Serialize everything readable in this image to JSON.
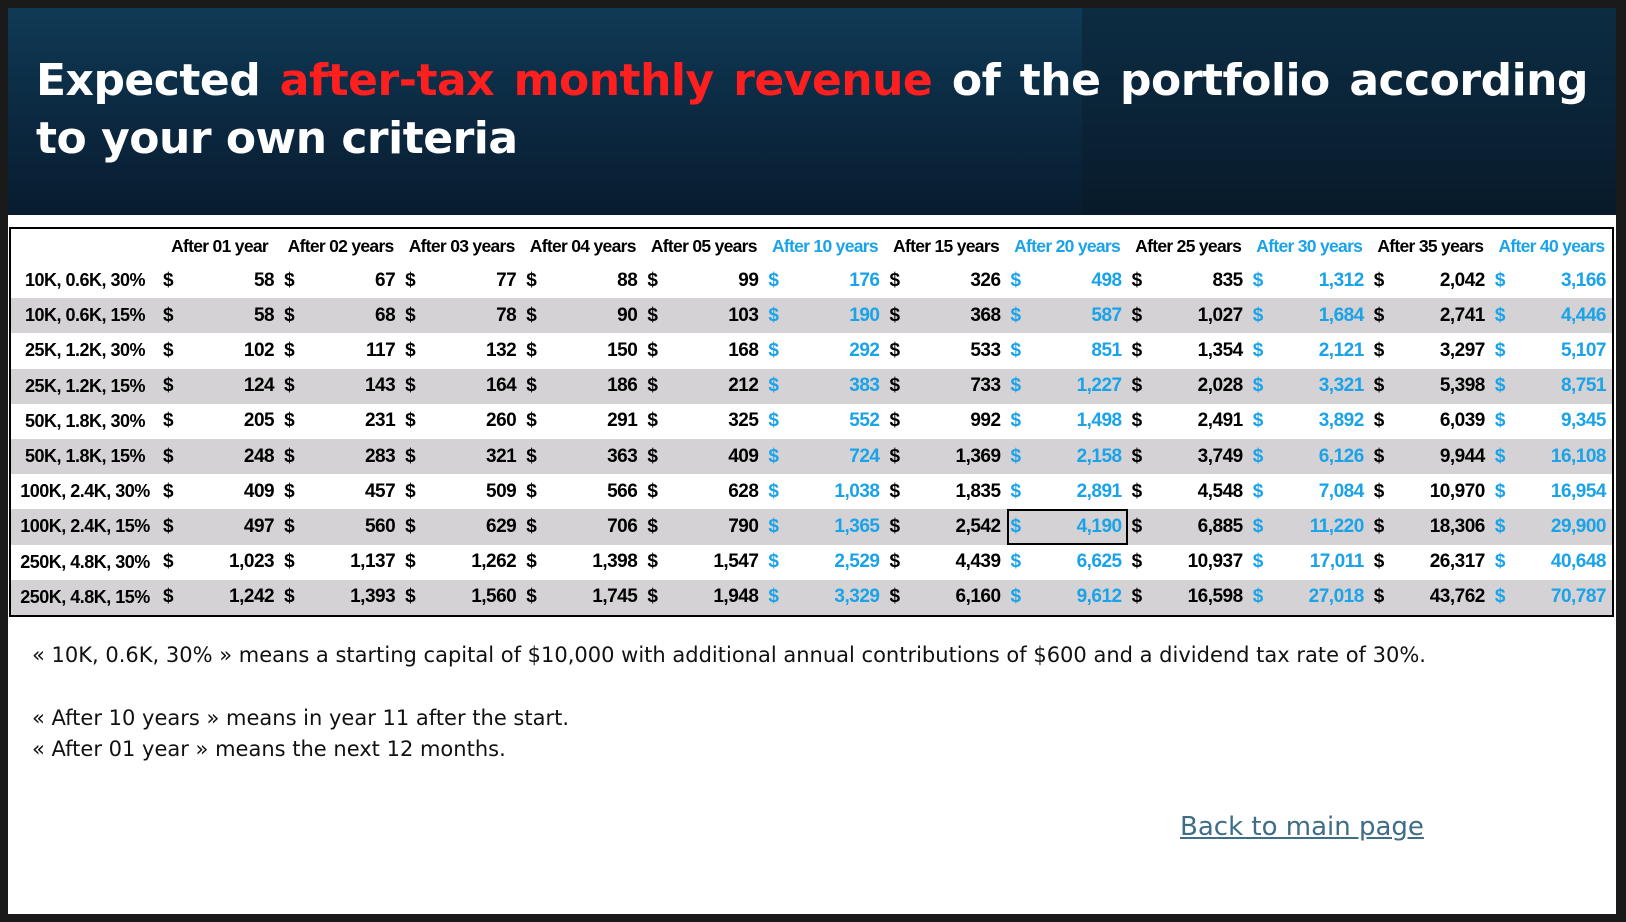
{
  "title": {
    "part1": "Expected ",
    "highlight": "after-tax monthly revenue",
    "part2": " of the portfolio according to your own criteria"
  },
  "colors": {
    "highlight": "#ff1f1f",
    "blue_columns": "#1aa3e8",
    "row_shade": "#d4d2d4",
    "link": "#3d6e86"
  },
  "table": {
    "currency": "$",
    "headers": [
      "After 01 year",
      "After 02 years",
      "After 03 years",
      "After 04 years",
      "After 05 years",
      "After 10 years",
      "After 15 years",
      "After 20 years",
      "After 25 years",
      "After 30 years",
      "After 35 years",
      "After 40 years"
    ],
    "blue_columns": [
      5,
      7,
      9,
      11
    ],
    "rows": [
      {
        "label": "10K, 0.6K, 30%",
        "values": [
          "58",
          "67",
          "77",
          "88",
          "99",
          "176",
          "326",
          "498",
          "835",
          "1,312",
          "2,042",
          "3,166"
        ]
      },
      {
        "label": "10K, 0.6K, 15%",
        "values": [
          "58",
          "68",
          "78",
          "90",
          "103",
          "190",
          "368",
          "587",
          "1,027",
          "1,684",
          "2,741",
          "4,446"
        ]
      },
      {
        "label": "25K, 1.2K, 30%",
        "values": [
          "102",
          "117",
          "132",
          "150",
          "168",
          "292",
          "533",
          "851",
          "1,354",
          "2,121",
          "3,297",
          "5,107"
        ]
      },
      {
        "label": "25K, 1.2K, 15%",
        "values": [
          "124",
          "143",
          "164",
          "186",
          "212",
          "383",
          "733",
          "1,227",
          "2,028",
          "3,321",
          "5,398",
          "8,751"
        ]
      },
      {
        "label": "50K, 1.8K, 30%",
        "values": [
          "205",
          "231",
          "260",
          "291",
          "325",
          "552",
          "992",
          "1,498",
          "2,491",
          "3,892",
          "6,039",
          "9,345"
        ]
      },
      {
        "label": "50K, 1.8K, 15%",
        "values": [
          "248",
          "283",
          "321",
          "363",
          "409",
          "724",
          "1,369",
          "2,158",
          "3,749",
          "6,126",
          "9,944",
          "16,108"
        ]
      },
      {
        "label": "100K, 2.4K, 30%",
        "values": [
          "409",
          "457",
          "509",
          "566",
          "628",
          "1,038",
          "1,835",
          "2,891",
          "4,548",
          "7,084",
          "10,970",
          "16,954"
        ]
      },
      {
        "label": "100K, 2.4K, 15%",
        "values": [
          "497",
          "560",
          "629",
          "706",
          "790",
          "1,365",
          "2,542",
          "4,190",
          "6,885",
          "11,220",
          "18,306",
          "29,900"
        ]
      },
      {
        "label": "250K, 4.8K, 30%",
        "values": [
          "1,023",
          "1,137",
          "1,262",
          "1,398",
          "1,547",
          "2,529",
          "4,439",
          "6,625",
          "10,937",
          "17,011",
          "26,317",
          "40,648"
        ]
      },
      {
        "label": "250K, 4.8K, 15%",
        "values": [
          "1,242",
          "1,393",
          "1,560",
          "1,745",
          "1,948",
          "3,329",
          "6,160",
          "9,612",
          "16,598",
          "27,018",
          "43,762",
          "70,787"
        ]
      }
    ],
    "selected_cell": {
      "row": 7,
      "col": 7
    }
  },
  "notes": {
    "line1": "« 10K, 0.6K, 30% » means a starting capital of $10,000 with additional annual contributions of $600 and a dividend tax rate of 30%.",
    "line2": "« After 10 years » means in year 11 after the start.",
    "line3": "« After 01 year » means the next 12 months."
  },
  "back_link": "Back to main page"
}
